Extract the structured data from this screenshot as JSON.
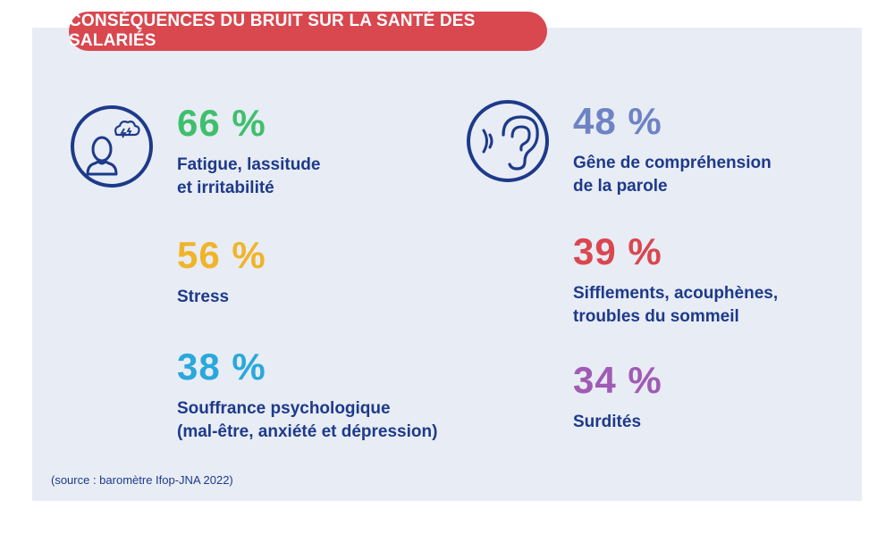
{
  "title": "CONSÉQUENCES DU BRUIT SUR LA SANTÉ DES SALARIÉS",
  "colors": {
    "title_bg": "#d9474f",
    "panel_bg": "#e8ecf5",
    "text_navy": "#1d3a8a",
    "green": "#3fbf6d",
    "yellow": "#f0b429",
    "cyan": "#29a8dc",
    "steel_blue": "#6e83c4",
    "red": "#d9474f",
    "purple": "#a05bb4"
  },
  "icons": {
    "left": "stressed-person-icon",
    "right": "ear-sound-icon"
  },
  "stats_left": [
    {
      "value": "66 %",
      "lines": [
        "Fatigue, lassitude",
        "et irritabilité"
      ],
      "color": "#3fbf6d"
    },
    {
      "value": "56 %",
      "lines": [
        "Stress"
      ],
      "color": "#f0b429"
    },
    {
      "value": "38 %",
      "lines": [
        "Souffrance psychologique",
        "(mal-être, anxiété et dépression)"
      ],
      "color": "#29a8dc"
    }
  ],
  "stats_right": [
    {
      "value": "48 %",
      "lines": [
        "Gêne de compréhension",
        "de la parole"
      ],
      "color": "#6e83c4"
    },
    {
      "value": "39 %",
      "lines": [
        "Sifflements, acouphènes,",
        "troubles du sommeil"
      ],
      "color": "#d9474f"
    },
    {
      "value": "34 %",
      "lines": [
        "Surdités"
      ],
      "color": "#a05bb4"
    }
  ],
  "source": "(source : baromètre Ifop-JNA 2022)"
}
